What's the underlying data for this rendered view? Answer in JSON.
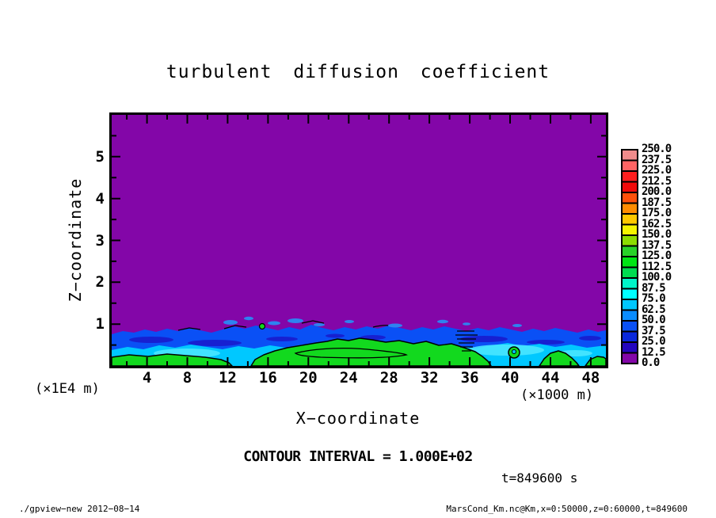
{
  "title": "turbulent diffusion coefficient",
  "plot": {
    "x_axis": {
      "label": "X−coordinate",
      "unit_note": "(×1000 m)",
      "major_tick_values": [
        4,
        8,
        12,
        16,
        20,
        24,
        28,
        32,
        36,
        40,
        44,
        48
      ],
      "minor_tick_step": 2,
      "range": [
        0.5,
        49.5
      ]
    },
    "z_axis": {
      "label": "Z−coordinate",
      "unit_note": "(×1E4 m)",
      "major_tick_values": [
        1,
        2,
        3,
        4,
        5
      ],
      "minor_tick_step": 0.5,
      "range": [
        0,
        6
      ]
    }
  },
  "colorbar": {
    "labels": [
      "250.0",
      "237.5",
      "225.0",
      "212.5",
      "200.0",
      "187.5",
      "175.0",
      "162.5",
      "150.0",
      "137.5",
      "125.0",
      "112.5",
      "100.0",
      "87.5",
      "75.0",
      "62.5",
      "50.0",
      "37.5",
      "25.0",
      "12.5",
      "0.0"
    ],
    "colors_top_to_bottom": [
      "#F08C8C",
      "#FF6464",
      "#FF1E1E",
      "#F00A0A",
      "#FF500A",
      "#FF8C00",
      "#FFC800",
      "#F5F500",
      "#8CDC00",
      "#28D228",
      "#00E614",
      "#00DC50",
      "#00F5C8",
      "#00FFFF",
      "#00C8FF",
      "#0A8CFF",
      "#0A50F5",
      "#0A28DC",
      "#2306BE",
      "#8306A8"
    ]
  },
  "annotations": {
    "contour_interval": "CONTOUR INTERVAL = 1.000E+02",
    "time": "t=849600 s"
  },
  "footer": {
    "left": "./gpview−new  2012−08−14",
    "right": "MarsCond_Km.nc@Km,x=0:50000,z=0:60000,t=849600"
  },
  "colors": {
    "background_value": "#8306A8",
    "band_blue": "#0A50F5",
    "band_dark_blue": "#1A14C8",
    "band_cyan": "#00C8FF",
    "band_light_cyan": "#49E6FF",
    "band_green": "#12D91E",
    "blob_blue": "#2E82F0",
    "contour_line": "#000000"
  },
  "chart_data": {
    "type": "heatmap",
    "title": "turbulent diffusion coefficient",
    "xlabel": "X−coordinate (×1000 m)",
    "ylabel": "Z−coordinate (×1E4 m)",
    "xlim": [
      0,
      50
    ],
    "ylim": [
      0,
      6
    ],
    "time": "t=849600 s",
    "contour_interval": 100,
    "drawn_contour_level": 100,
    "shade_levels": [
      0,
      12.5,
      25,
      37.5,
      50,
      62.5,
      75,
      87.5,
      100,
      112.5,
      125,
      137.5,
      150,
      162.5,
      175,
      187.5,
      200,
      212.5,
      225,
      237.5,
      250
    ],
    "legend_position": "right",
    "field_summary": {
      "description": "Diffusion coefficient ≈ 0 (purple) everywhere above z ≈ 0.9×1E4 m; shallow turbulent surface layer below with values ~25–150; green cores (>100, outlined by the 100-level black contour) near x ≈ 0–12, 14–38, 43–48 ×1000 m; small detached blue plumes around x ≈ 12–24 just above the layer top.",
      "band_top_profile": {
        "x": [
          0,
          5,
          10,
          15,
          20,
          25,
          30,
          35,
          40,
          45,
          50
        ],
        "z": [
          0.76,
          0.88,
          0.95,
          1.02,
          0.9,
          0.85,
          0.88,
          0.92,
          0.86,
          0.83,
          0.84
        ]
      },
      "surface_layer_typical_values": {
        "x": [
          2.5,
          7.5,
          12.5,
          17.5,
          22.5,
          27.5,
          32.5,
          37.5,
          42.5,
          47.5
        ],
        "Km": [
          75,
          60,
          110,
          140,
          130,
          90,
          70,
          60,
          120,
          110
        ]
      }
    }
  }
}
